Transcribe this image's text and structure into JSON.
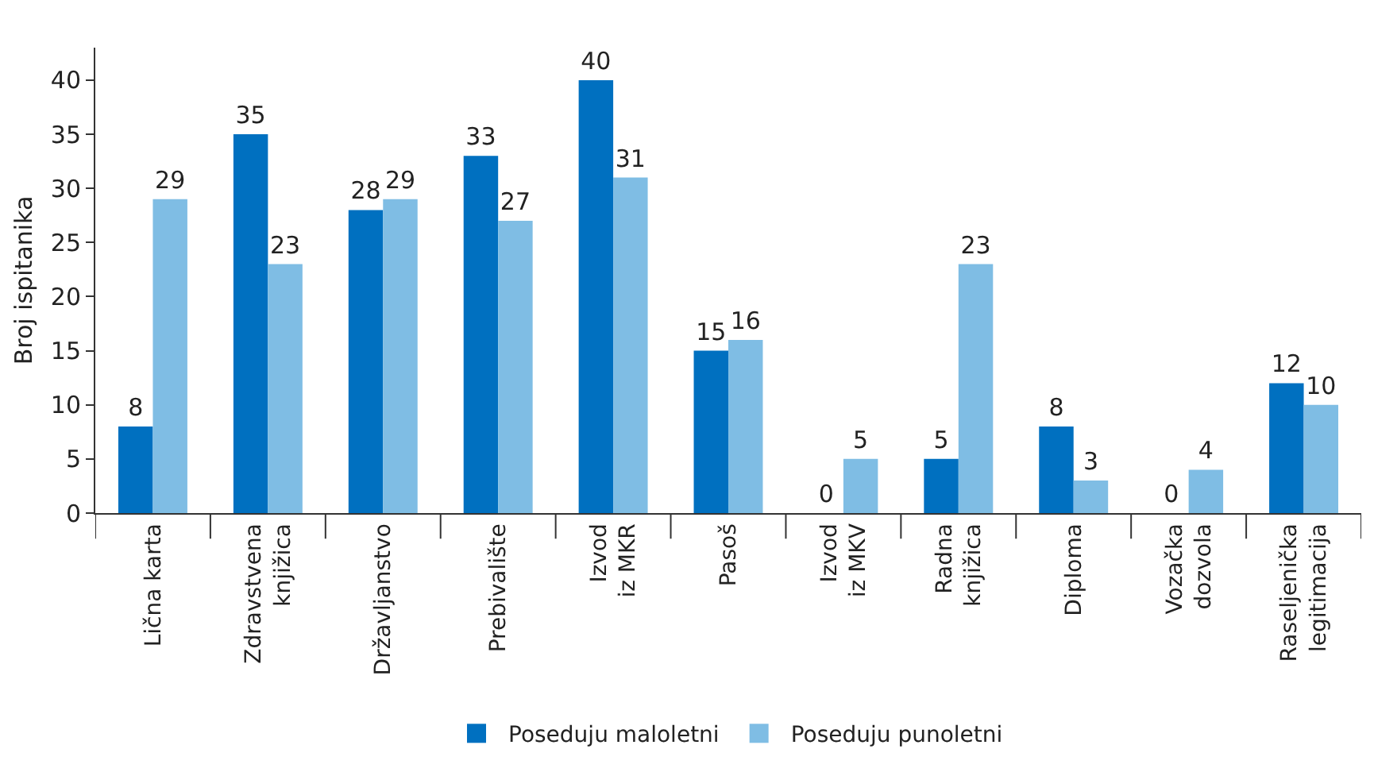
{
  "chart_data": {
    "type": "bar",
    "ylabel": "Broj ispitanika",
    "categories": [
      "Lična karta",
      "Zdravstvena\nknjižica",
      "Državljanstvo",
      "Prebivalište",
      "Izvod\niz MKR",
      "Pasoš",
      "Izvod\niz MKV",
      "Radna\nknjižica",
      "Diploma",
      "Vozačka\ndozvola",
      "Raseljenička\nlegitimacija"
    ],
    "series": [
      {
        "name": "Poseduju maloletni",
        "color": "#0070c0",
        "values": [
          8,
          35,
          28,
          33,
          40,
          15,
          0,
          5,
          8,
          0,
          12
        ],
        "value_labels": [
          "8",
          "35",
          "28",
          "33",
          "40",
          "15",
          "0",
          "5",
          "8",
          "0",
          "12"
        ]
      },
      {
        "name": "Poseduju punoletni",
        "color": "#7fbde4",
        "values": [
          29,
          23,
          29,
          27,
          31,
          16,
          5,
          23,
          3,
          4,
          10
        ],
        "value_labels": [
          "29",
          "23",
          "29",
          "27",
          "31",
          "16",
          "5",
          "23",
          "3",
          "4",
          "10"
        ]
      }
    ],
    "ylim": [
      0,
      43
    ],
    "yticks": [
      0,
      5,
      10,
      15,
      20,
      25,
      30,
      35,
      40
    ],
    "grid": false,
    "legend": "bottom"
  }
}
